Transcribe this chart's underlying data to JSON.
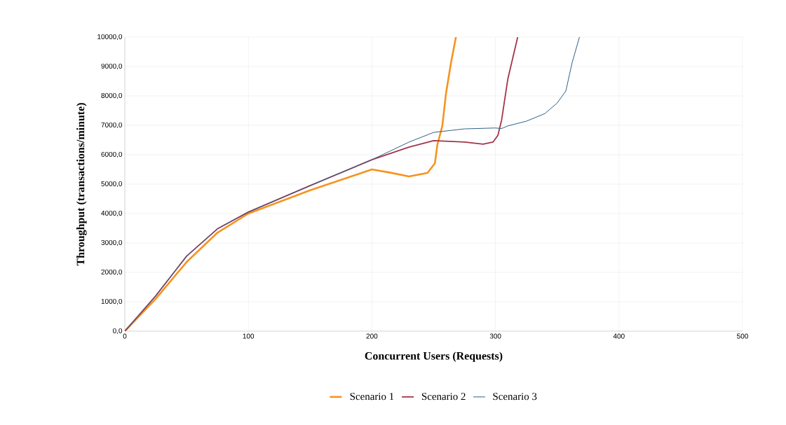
{
  "chart_data": {
    "type": "line",
    "xlabel": "Concurrent Users (Requests)",
    "ylabel": "Throughput (transactions/minute)",
    "xlim": [
      0,
      500
    ],
    "xticks": [
      0,
      100,
      200,
      300,
      400,
      500
    ],
    "ylim": [
      0,
      10000
    ],
    "yticks": [
      {
        "value": 0,
        "label": "0,0"
      },
      {
        "value": 1000,
        "label": "1000,0"
      },
      {
        "value": 2000,
        "label": "2000,0"
      },
      {
        "value": 3000,
        "label": "3000,0"
      },
      {
        "value": 4000,
        "label": "4000,0"
      },
      {
        "value": 5000,
        "label": "5000,0"
      },
      {
        "value": 6000,
        "label": "6000,0"
      },
      {
        "value": 7000,
        "label": "7000,0"
      },
      {
        "value": 8000,
        "label": "8000,0"
      },
      {
        "value": 9000,
        "label": "9000,0"
      },
      {
        "value": 10000,
        "label": "10000,0"
      }
    ],
    "grid": true,
    "legend": "bottom",
    "line_style": "solid",
    "series": [
      {
        "name": "Scenario 1",
        "color": "#f7931e",
        "x": [
          0,
          25,
          50,
          75,
          100,
          150,
          200,
          215,
          230,
          245,
          251,
          253,
          257,
          260,
          264,
          268
        ],
        "values": [
          0,
          1100,
          2350,
          3350,
          4000,
          4790,
          5500,
          5390,
          5260,
          5380,
          5710,
          6340,
          6980,
          8090,
          9120,
          10000
        ]
      },
      {
        "name": "Scenario 2",
        "color": "#a3344a",
        "x": [
          0,
          25,
          50,
          75,
          100,
          150,
          200,
          230,
          250,
          275,
          290,
          298,
          302,
          305,
          310,
          318
        ],
        "values": [
          0,
          1200,
          2550,
          3480,
          4050,
          4950,
          5830,
          6260,
          6480,
          6430,
          6360,
          6430,
          6660,
          7180,
          8570,
          10000
        ]
      },
      {
        "name": "Scenario 3",
        "color": "#2e5f87",
        "x": [
          0,
          25,
          50,
          75,
          100,
          150,
          200,
          230,
          250,
          275,
          300,
          305,
          310,
          325,
          340,
          350,
          357,
          362,
          368
        ],
        "values": [
          0,
          1200,
          2550,
          3480,
          4050,
          4950,
          5830,
          6430,
          6760,
          6880,
          6910,
          6890,
          6980,
          7140,
          7400,
          7760,
          8170,
          9120,
          10000
        ]
      }
    ]
  }
}
